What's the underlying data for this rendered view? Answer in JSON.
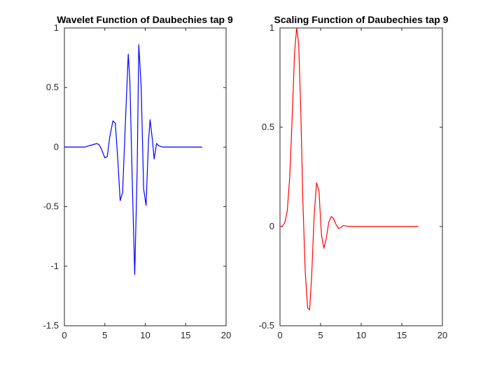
{
  "chart_data": [
    {
      "type": "line",
      "title": "Wavelet Function of Daubechies tap 9",
      "xlabel": "",
      "ylabel": "",
      "xlim": [
        0,
        20
      ],
      "ylim": [
        -1.5,
        1
      ],
      "xticks": [
        0,
        5,
        10,
        15,
        20
      ],
      "xtick_labels": [
        "0",
        "5",
        "10",
        "15",
        "20"
      ],
      "yticks": [
        -1.5,
        -1,
        -0.5,
        0,
        0.5,
        1
      ],
      "ytick_labels": [
        "-1.5",
        "-1",
        "-0.5",
        "0",
        "0.5",
        "1"
      ],
      "grid": false,
      "series": [
        {
          "color": "#0000ff",
          "x": [
            0,
            2.5,
            3.0,
            3.5,
            4.0,
            4.3,
            4.6,
            5.0,
            5.3,
            5.6,
            6.0,
            6.3,
            6.6,
            6.9,
            7.2,
            7.6,
            7.9,
            8.1,
            8.4,
            8.7,
            9.0,
            9.2,
            9.5,
            9.8,
            10.1,
            10.4,
            10.6,
            10.9,
            11.1,
            11.4,
            11.7,
            12.2,
            13.0,
            17.0
          ],
          "y": [
            0,
            0,
            0.01,
            0.02,
            0.03,
            0.02,
            -0.02,
            -0.09,
            -0.08,
            0.08,
            0.22,
            0.2,
            -0.1,
            -0.45,
            -0.38,
            0.3,
            0.78,
            0.55,
            -0.3,
            -1.07,
            -0.2,
            0.86,
            0.5,
            -0.35,
            -0.49,
            0.05,
            0.23,
            0.05,
            -0.1,
            0.03,
            0.01,
            0,
            0,
            0
          ]
        }
      ]
    },
    {
      "type": "line",
      "title": "Scaling Function of Daubechies tap 9",
      "xlabel": "",
      "ylabel": "",
      "xlim": [
        0,
        20
      ],
      "ylim": [
        -0.5,
        1
      ],
      "xticks": [
        0,
        5,
        10,
        15,
        20
      ],
      "xtick_labels": [
        "0",
        "5",
        "10",
        "15",
        "20"
      ],
      "yticks": [
        -0.5,
        0,
        0.5,
        1
      ],
      "ytick_labels": [
        "-0.5",
        "0",
        "0.5",
        "1"
      ],
      "grid": false,
      "series": [
        {
          "color": "#ff0000",
          "x": [
            0,
            0.3,
            0.6,
            0.9,
            1.2,
            1.5,
            1.8,
            2.05,
            2.3,
            2.55,
            2.8,
            3.1,
            3.4,
            3.65,
            3.9,
            4.2,
            4.5,
            4.8,
            5.1,
            5.4,
            5.7,
            6.0,
            6.3,
            6.6,
            6.9,
            7.2,
            7.5,
            7.8,
            8.2,
            8.6,
            9.0,
            10.0,
            17.0
          ],
          "y": [
            0,
            0.002,
            0.02,
            0.08,
            0.25,
            0.55,
            0.88,
            1.0,
            0.92,
            0.6,
            0.15,
            -0.22,
            -0.41,
            -0.42,
            -0.25,
            0.05,
            0.22,
            0.18,
            -0.04,
            -0.11,
            -0.06,
            0.02,
            0.05,
            0.04,
            0.01,
            -0.01,
            -0.005,
            0.005,
            0.002,
            0,
            0,
            0,
            0
          ]
        }
      ]
    }
  ]
}
